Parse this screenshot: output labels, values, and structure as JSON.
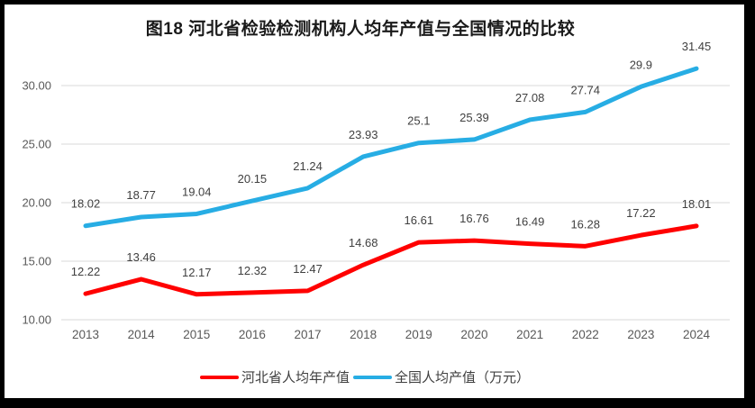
{
  "chart_data": {
    "type": "line",
    "title": "图18  河北省检验检测机构人均年产值与全国情况的比较",
    "categories": [
      "2013",
      "2014",
      "2015",
      "2016",
      "2017",
      "2018",
      "2019",
      "2020",
      "2021",
      "2022",
      "2023",
      "2024"
    ],
    "series": [
      {
        "name": "河北省人均年产值",
        "color": "#ff0000",
        "values": [
          12.22,
          13.46,
          12.17,
          12.32,
          12.47,
          14.68,
          16.61,
          16.76,
          16.49,
          16.28,
          17.22,
          18.01
        ]
      },
      {
        "name": "全国人均产值（万元）",
        "color": "#27ade4",
        "values": [
          18.02,
          18.77,
          19.04,
          20.15,
          21.24,
          23.93,
          25.1,
          25.39,
          27.08,
          27.74,
          29.9,
          31.45
        ]
      }
    ],
    "y_ticks": [
      "10.00",
      "15.00",
      "20.00",
      "25.00",
      "30.00"
    ],
    "ylim": [
      10,
      30
    ],
    "grid": true,
    "legend_position": "bottom",
    "colors": {
      "gridline": "#d9d9d9",
      "tick_label": "#595959",
      "data_label": "#404040",
      "frame": "#000000"
    }
  }
}
